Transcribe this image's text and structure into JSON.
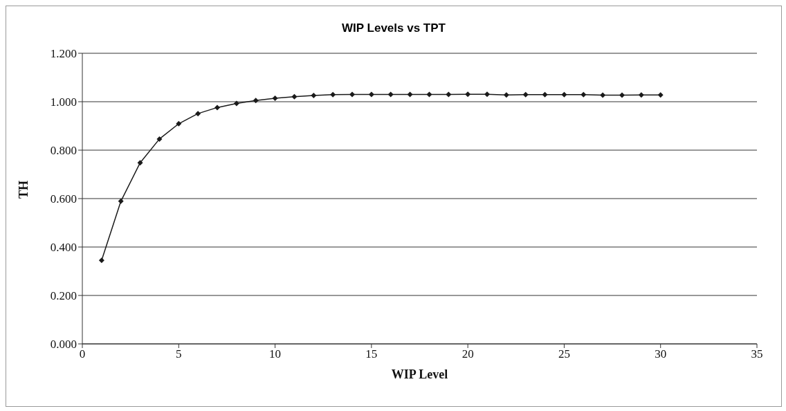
{
  "chart_data": {
    "type": "line",
    "title": "WIP Levels vs TPT",
    "xlabel": "WIP Level",
    "ylabel": "TH",
    "x": [
      1,
      2,
      3,
      4,
      5,
      6,
      7,
      8,
      9,
      10,
      11,
      12,
      13,
      14,
      15,
      16,
      17,
      18,
      19,
      20,
      21,
      22,
      23,
      24,
      25,
      26,
      27,
      28,
      29,
      30
    ],
    "series": [
      {
        "color": "#1a1a1a",
        "values": [
          0.345,
          0.589,
          0.748,
          0.846,
          0.909,
          0.951,
          0.976,
          0.993,
          1.005,
          1.014,
          1.021,
          1.026,
          1.029,
          1.03,
          1.03,
          1.03,
          1.03,
          1.03,
          1.03,
          1.031,
          1.031,
          1.028,
          1.029,
          1.029,
          1.029,
          1.029,
          1.027,
          1.027,
          1.028,
          1.028
        ]
      }
    ],
    "xlim": [
      0,
      35
    ],
    "xticks": [
      0,
      5,
      10,
      15,
      20,
      25,
      30,
      35
    ],
    "ylim": [
      0,
      1.2
    ],
    "yticks": [
      {
        "value": 0,
        "label": "0.000"
      },
      {
        "value": 0.2,
        "label": "0.200"
      },
      {
        "value": 0.4,
        "label": "0.400"
      },
      {
        "value": 0.6,
        "label": "0.600"
      },
      {
        "value": 0.8,
        "label": "0.800"
      },
      {
        "value": 1,
        "label": "1.000"
      },
      {
        "value": 1.2,
        "label": "1.200"
      }
    ],
    "grid": "y",
    "legend": false,
    "marker": "diamond",
    "line_style": "solid"
  }
}
